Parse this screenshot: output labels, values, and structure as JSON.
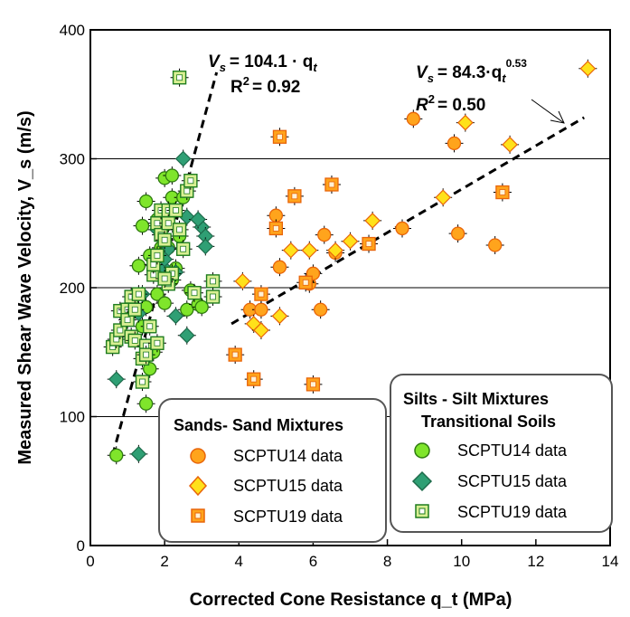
{
  "chart_data": {
    "type": "scatter",
    "xlabel": "Corrected Cone Resistance q_t (MPa)",
    "ylabel": "Measured Shear Wave Velocity, V_s (m/s)",
    "xlim": [
      0,
      14
    ],
    "ylim": [
      0,
      400
    ],
    "xticks": [
      "0",
      "2",
      "4",
      "6",
      "8",
      "10",
      "12",
      "14"
    ],
    "yticks": [
      "0",
      "100",
      "200",
      "300",
      "400"
    ],
    "grid_y": [
      100,
      200,
      300
    ],
    "colors": {
      "sand_fill": "#ffa41c",
      "sand_stroke": "#e8650a",
      "sand_diamond": "#ffe11a",
      "silt_circle": "#7fe52b",
      "silt_diamond": "#2f9f74",
      "silt_square_stroke": "#1f7d1f",
      "silt_square_fill": "#d8ef92"
    },
    "fits": [
      {
        "name": "Silt fit",
        "equation": {
          "lhs": "V",
          "lhs_sub": "s",
          "rhs": "= 104.1 · q",
          "rhs_sub": "t"
        },
        "r2": {
          "label": "R",
          "sup": "2",
          "value": "= 0.92"
        },
        "x": [
          0.6,
          3.4
        ],
        "y": [
          70,
          367
        ]
      },
      {
        "name": "Sand fit",
        "equation": {
          "lhs": "V",
          "lhs_sub": "s",
          "rhs": "=  84.3·q",
          "rhs_sub": "t",
          "rhs_sup": "0.53"
        },
        "r2": {
          "label": "R",
          "sup": "2",
          "value": "= 0.50"
        },
        "x": [
          3.8,
          13.3
        ],
        "y": [
          172,
          332
        ]
      }
    ],
    "legends": [
      {
        "title_lines": [
          "Sands- Sand Mixtures"
        ],
        "entries": [
          "SCPTU14 data",
          "SCPTU15 data",
          "SCPTU19 data"
        ]
      },
      {
        "title_lines": [
          "Silts - Silt Mixtures",
          "Transitional Soils"
        ],
        "entries": [
          "SCPTU14 data",
          "SCPTU15 data",
          "SCPTU19 data"
        ]
      }
    ],
    "series": [
      {
        "name": "Sands SCPTU14 data",
        "marker": "circle-sand",
        "points": [
          [
            4.3,
            183
          ],
          [
            4.6,
            183
          ],
          [
            5.1,
            216
          ],
          [
            5.0,
            256
          ],
          [
            5.9,
            203
          ],
          [
            6.0,
            211
          ],
          [
            6.2,
            183
          ],
          [
            6.3,
            241
          ],
          [
            6.6,
            227
          ],
          [
            8.7,
            331
          ],
          [
            8.4,
            246
          ],
          [
            9.8,
            312
          ],
          [
            9.9,
            242
          ],
          [
            10.9,
            233
          ]
        ]
      },
      {
        "name": "Sands SCPTU15 data",
        "marker": "diamond-sand",
        "points": [
          [
            4.1,
            205
          ],
          [
            4.4,
            172
          ],
          [
            4.6,
            167
          ],
          [
            5.1,
            178
          ],
          [
            5.4,
            229
          ],
          [
            5.9,
            229
          ],
          [
            6.6,
            229
          ],
          [
            7.0,
            236
          ],
          [
            7.6,
            252
          ],
          [
            9.5,
            270
          ],
          [
            10.1,
            328
          ],
          [
            11.3,
            311
          ],
          [
            13.4,
            370
          ]
        ]
      },
      {
        "name": "Sands SCPTU19 data",
        "marker": "square-sand",
        "points": [
          [
            3.9,
            148
          ],
          [
            4.4,
            129
          ],
          [
            4.6,
            195
          ],
          [
            5.1,
            317
          ],
          [
            5.0,
            246
          ],
          [
            5.5,
            271
          ],
          [
            6.0,
            125
          ],
          [
            6.5,
            280
          ],
          [
            5.8,
            204
          ],
          [
            7.5,
            234
          ],
          [
            11.1,
            274
          ]
        ]
      },
      {
        "name": "Silts SCPTU14 data",
        "marker": "circle-silt",
        "points": [
          [
            0.7,
            70
          ],
          [
            1.5,
            110
          ],
          [
            1.6,
            137
          ],
          [
            1.7,
            150
          ],
          [
            1.4,
            170
          ],
          [
            1.5,
            185
          ],
          [
            1.8,
            195
          ],
          [
            2.0,
            188
          ],
          [
            1.3,
            217
          ],
          [
            1.6,
            225
          ],
          [
            1.9,
            231
          ],
          [
            2.1,
            231
          ],
          [
            2.2,
            270
          ],
          [
            2.5,
            270
          ],
          [
            1.5,
            267
          ],
          [
            1.8,
            253
          ],
          [
            2.0,
            248
          ],
          [
            2.4,
            240
          ],
          [
            2.0,
            285
          ],
          [
            2.2,
            287
          ],
          [
            1.4,
            248
          ],
          [
            2.3,
            215
          ],
          [
            2.6,
            183
          ],
          [
            2.9,
            187
          ],
          [
            3.0,
            185
          ],
          [
            2.2,
            206
          ],
          [
            2.7,
            198
          ]
        ]
      },
      {
        "name": "Silts SCPTU15 data",
        "marker": "diamond-silt",
        "points": [
          [
            0.7,
            129
          ],
          [
            1.3,
            71
          ],
          [
            1.3,
            180
          ],
          [
            1.4,
            195
          ],
          [
            1.8,
            212
          ],
          [
            2.0,
            215
          ],
          [
            2.1,
            230
          ],
          [
            2.3,
            212
          ],
          [
            2.3,
            178
          ],
          [
            2.6,
            163
          ],
          [
            2.5,
            300
          ],
          [
            2.6,
            255
          ],
          [
            3.0,
            247
          ],
          [
            3.1,
            240
          ],
          [
            3.1,
            232
          ],
          [
            2.9,
            253
          ],
          [
            1.8,
            245
          ],
          [
            2.0,
            222
          ]
        ]
      },
      {
        "name": "Silts SCPTU19 data",
        "marker": "square-silt",
        "points": [
          [
            2.4,
            363
          ],
          [
            0.6,
            154
          ],
          [
            0.7,
            160
          ],
          [
            0.8,
            167
          ],
          [
            0.8,
            182
          ],
          [
            1.0,
            183
          ],
          [
            1.0,
            175
          ],
          [
            1.1,
            162
          ],
          [
            1.2,
            159
          ],
          [
            1.1,
            193
          ],
          [
            1.2,
            183
          ],
          [
            1.3,
            195
          ],
          [
            1.4,
            127
          ],
          [
            1.5,
            155
          ],
          [
            1.6,
            170
          ],
          [
            1.7,
            210
          ],
          [
            1.7,
            218
          ],
          [
            1.8,
            225
          ],
          [
            1.8,
            250
          ],
          [
            1.9,
            241
          ],
          [
            1.9,
            260
          ],
          [
            2.0,
            237
          ],
          [
            2.1,
            260
          ],
          [
            2.1,
            250
          ],
          [
            2.1,
            203
          ],
          [
            2.2,
            211
          ],
          [
            2.3,
            260
          ],
          [
            2.4,
            245
          ],
          [
            2.5,
            230
          ],
          [
            2.6,
            275
          ],
          [
            2.7,
            283
          ],
          [
            2.8,
            196
          ],
          [
            3.3,
            205
          ],
          [
            3.3,
            193
          ],
          [
            1.4,
            145
          ],
          [
            1.5,
            148
          ],
          [
            1.8,
            157
          ],
          [
            2.0,
            207
          ]
        ]
      }
    ]
  }
}
